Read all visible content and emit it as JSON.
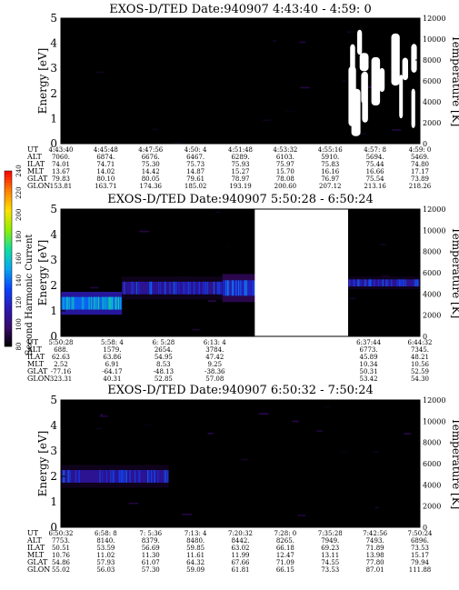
{
  "chart_data": [
    {
      "type": "heatmap",
      "title": "EXOS-D/TED   Date:940907  4:43:40 - 4:59: 0",
      "ylabel": "Energy [eV]",
      "y2label": "Temperature [K]",
      "ylim": [
        0,
        5
      ],
      "y2lim": [
        0,
        12000
      ],
      "yticks": [
        "0",
        "1",
        "2",
        "3",
        "4",
        "5"
      ],
      "y2ticks": [
        "0",
        "2000",
        "4000",
        "6000",
        "8000",
        "10000",
        "12000"
      ],
      "rows": [
        {
          "name": "UT",
          "values": [
            "4:43:40",
            "4:45:48",
            "4:47:56",
            "4:50: 4",
            "4:51:48",
            "4:53:32",
            "4:55:16",
            "4:57: 8",
            "4:59: 0"
          ]
        },
        {
          "name": "ALT",
          "values": [
            "7060.",
            "6874.",
            "6676.",
            "6467.",
            "6289.",
            "6103.",
            "5910.",
            "5694.",
            "5469."
          ]
        },
        {
          "name": "ILAT",
          "values": [
            "74.01",
            "74.71",
            "75.30",
            "75.73",
            "75.93",
            "75.97",
            "75.83",
            "75.44",
            "74.80"
          ]
        },
        {
          "name": "MLT",
          "values": [
            "13.67",
            "14.02",
            "14.42",
            "14.87",
            "15.27",
            "15.70",
            "16.16",
            "16.66",
            "17.17"
          ]
        },
        {
          "name": "GLAT",
          "values": [
            "79.83",
            "80.10",
            "80.05",
            "79.61",
            "78.97",
            "78.08",
            "76.97",
            "75.54",
            "73.89"
          ]
        },
        {
          "name": "GLON",
          "values": [
            "153.81",
            "163.71",
            "174.36",
            "185.02",
            "193.19",
            "200.60",
            "207.12",
            "213.16",
            "218.26"
          ]
        }
      ],
      "background_level": 30,
      "features": [
        {
          "kind": "gap",
          "x0": 0.8,
          "x1": 0.99,
          "y0": 0.3,
          "y1": 4.6
        }
      ]
    },
    {
      "type": "heatmap",
      "title": "EXOS-D/TED   Date:940907  5:50:28 - 6:50:24",
      "ylabel": "Energy [eV]",
      "y2label": "Temperature [K]",
      "ylim": [
        0,
        5
      ],
      "y2lim": [
        0,
        12000
      ],
      "yticks": [
        "0",
        "1",
        "2",
        "3",
        "4",
        "5"
      ],
      "y2ticks": [
        "0",
        "2000",
        "4000",
        "6000",
        "8000",
        "10000",
        "12000"
      ],
      "rows": [
        {
          "name": "UT",
          "values": [
            "5:50:28",
            "5:58: 4",
            "6: 5:28",
            "6:13: 4",
            "",
            "",
            "6:37:44",
            "6:44:32"
          ]
        },
        {
          "name": "ALT",
          "values": [
            "688.",
            "1579.",
            "2654.",
            "3784.",
            "",
            "",
            "6773.",
            "7345."
          ]
        },
        {
          "name": "ILAT",
          "values": [
            "62.63",
            "63.86",
            "54.95",
            "47.42",
            "",
            "",
            "45.89",
            "48.21"
          ]
        },
        {
          "name": "MLT",
          "values": [
            "2.52",
            "6.91",
            "8.53",
            "9.25",
            "",
            "",
            "10.34",
            "10.56"
          ]
        },
        {
          "name": "GLAT",
          "values": [
            "-77.16",
            "-64.17",
            "-48.13",
            "-38.36",
            "",
            "",
            "50.31",
            "52.59"
          ]
        },
        {
          "name": "GLON",
          "values": [
            "323.31",
            "40.31",
            "52.85",
            "57.08",
            "",
            "",
            "53.42",
            "54.30"
          ]
        }
      ],
      "background_level": 30,
      "features": [
        {
          "kind": "band",
          "x0": 0.0,
          "x1": 0.17,
          "yc": 1.3,
          "hw": 0.45,
          "level": 140
        },
        {
          "kind": "band",
          "x0": 0.17,
          "x1": 0.45,
          "yc": 1.9,
          "hw": 0.45,
          "level": 110
        },
        {
          "kind": "band",
          "x0": 0.45,
          "x1": 0.75,
          "yc": 1.9,
          "hw": 0.55,
          "level": 120
        },
        {
          "kind": "band",
          "x0": 0.79,
          "x1": 1.0,
          "yc": 2.1,
          "hw": 0.25,
          "level": 110
        },
        {
          "kind": "gap",
          "x0": 0.54,
          "x1": 0.8,
          "y0": 0.0,
          "y1": 5.0
        }
      ]
    },
    {
      "type": "heatmap",
      "title": "EXOS-D/TED   Date:940907  6:50:32 - 7:50:24",
      "ylabel": "Energy [eV]",
      "y2label": "Temperature [K]",
      "ylim": [
        0,
        5
      ],
      "y2lim": [
        0,
        12000
      ],
      "yticks": [
        "0",
        "1",
        "2",
        "3",
        "4",
        "5"
      ],
      "y2ticks": [
        "0",
        "2000",
        "4000",
        "6000",
        "8000",
        "10000",
        "12000"
      ],
      "rows": [
        {
          "name": "UT",
          "values": [
            "6:50:32",
            "6:58: 8",
            "7: 5:36",
            "7:13: 4",
            "7:20:32",
            "7:28: 0",
            "7:35:28",
            "7:42:56",
            "7:50:24"
          ]
        },
        {
          "name": "ALT",
          "values": [
            "7753.",
            "8140.",
            "8379.",
            "8480.",
            "8442.",
            "8265.",
            "7949.",
            "7493.",
            "6896."
          ]
        },
        {
          "name": "ILAT",
          "values": [
            "50.51",
            "53.59",
            "56.69",
            "59.85",
            "63.02",
            "66.18",
            "69.23",
            "71.89",
            "73.53"
          ]
        },
        {
          "name": "MLT",
          "values": [
            "10.76",
            "11.02",
            "11.30",
            "11.61",
            "11.99",
            "12.47",
            "13.11",
            "13.98",
            "15.17"
          ]
        },
        {
          "name": "GLAT",
          "values": [
            "54.86",
            "57.93",
            "61.07",
            "64.32",
            "67.66",
            "71.09",
            "74.55",
            "77.80",
            "79.94"
          ]
        },
        {
          "name": "GLON",
          "values": [
            "55.02",
            "56.03",
            "57.30",
            "59.09",
            "61.81",
            "66.15",
            "73.53",
            "87.01",
            "111.88"
          ]
        }
      ],
      "background_level": 30,
      "features": [
        {
          "kind": "band",
          "x0": 0.0,
          "x1": 0.3,
          "yc": 2.0,
          "hw": 0.45,
          "level": 110
        }
      ]
    }
  ],
  "colorbar": {
    "label": "Second Harmonic Current",
    "ticks": [
      "80",
      "100",
      "120",
      "140",
      "160",
      "180",
      "200",
      "220",
      "240"
    ],
    "range": [
      80,
      240
    ],
    "colors": [
      "#000000",
      "#3a0a6b",
      "#2a1ab8",
      "#0a44ff",
      "#08a8f0",
      "#10e0a0",
      "#90f000",
      "#ffe000",
      "#ff8000",
      "#ff0000"
    ]
  }
}
